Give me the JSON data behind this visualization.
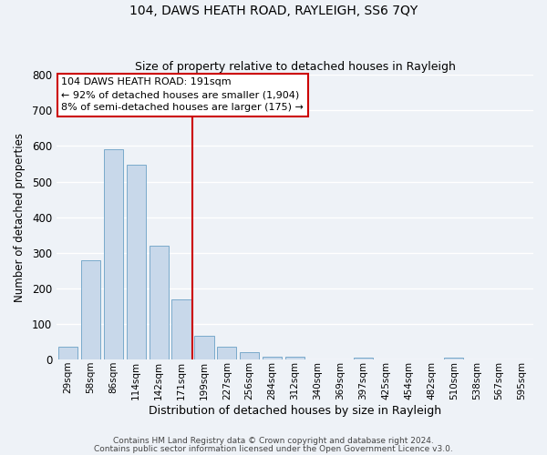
{
  "title": "104, DAWS HEATH ROAD, RAYLEIGH, SS6 7QY",
  "subtitle": "Size of property relative to detached houses in Rayleigh",
  "xlabel": "Distribution of detached houses by size in Rayleigh",
  "ylabel": "Number of detached properties",
  "bar_labels": [
    "29sqm",
    "58sqm",
    "86sqm",
    "114sqm",
    "142sqm",
    "171sqm",
    "199sqm",
    "227sqm",
    "256sqm",
    "284sqm",
    "312sqm",
    "340sqm",
    "369sqm",
    "397sqm",
    "425sqm",
    "454sqm",
    "482sqm",
    "510sqm",
    "538sqm",
    "567sqm",
    "595sqm"
  ],
  "bar_values": [
    38,
    280,
    590,
    548,
    320,
    170,
    68,
    38,
    22,
    10,
    8,
    0,
    0,
    6,
    0,
    0,
    0,
    6,
    0,
    0,
    0
  ],
  "bar_color": "#c8d8ea",
  "bar_edge_color": "#7aaacb",
  "ylim": [
    0,
    800
  ],
  "yticks": [
    0,
    100,
    200,
    300,
    400,
    500,
    600,
    700,
    800
  ],
  "vline_x": 5.5,
  "vline_color": "#cc0000",
  "annotation_title": "104 DAWS HEATH ROAD: 191sqm",
  "annotation_line1": "← 92% of detached houses are smaller (1,904)",
  "annotation_line2": "8% of semi-detached houses are larger (175) →",
  "annotation_box_color": "#ffffff",
  "annotation_box_edge": "#cc0000",
  "background_color": "#eef2f7",
  "grid_color": "#ffffff",
  "footer1": "Contains HM Land Registry data © Crown copyright and database right 2024.",
  "footer2": "Contains public sector information licensed under the Open Government Licence v3.0."
}
